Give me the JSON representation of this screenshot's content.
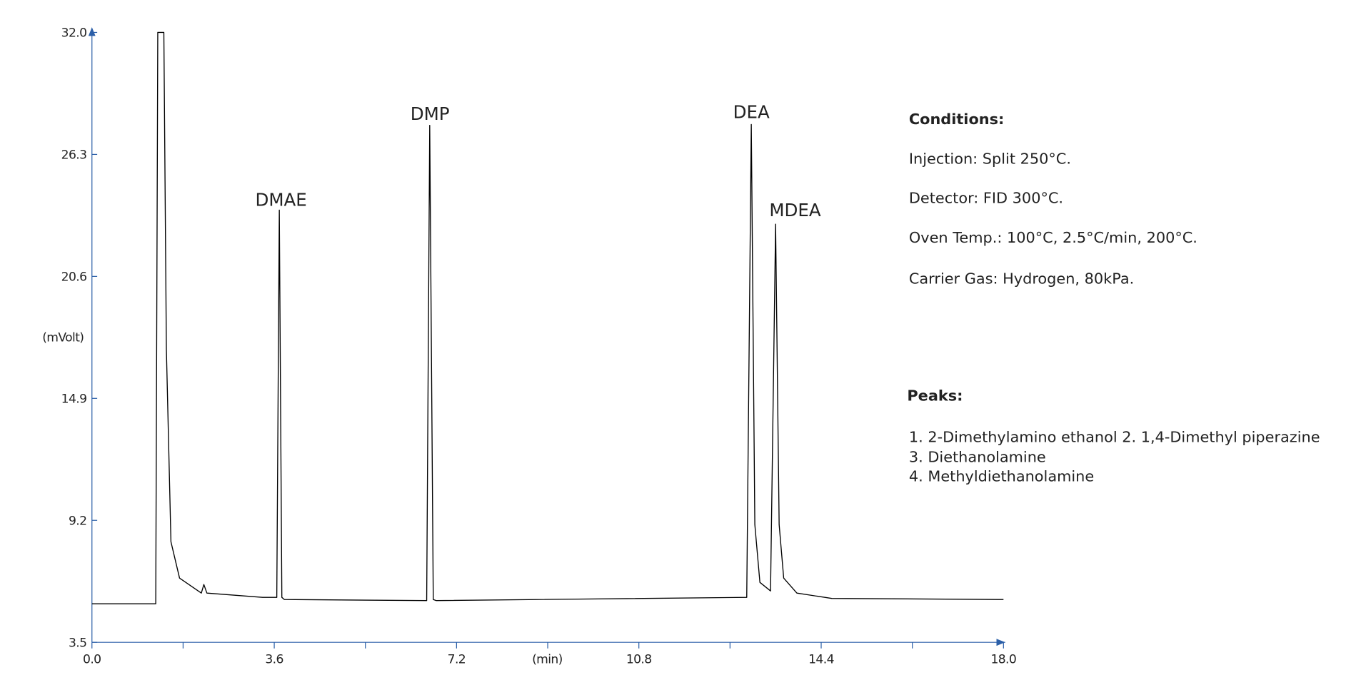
{
  "chart_data": {
    "type": "line",
    "x_label": "(min)",
    "y_label": "(mVolt)",
    "xlim": [
      0,
      18
    ],
    "ylim": [
      3.5,
      32
    ],
    "xticks": [
      {
        "value": 0,
        "label": "0.0"
      },
      3.6,
      7.2,
      10.8,
      14.4,
      {
        "value": 18,
        "label": "18.0"
      }
    ],
    "x_minor_ticks": [
      1.8,
      5.4,
      9.0,
      12.6,
      16.2
    ],
    "yticks": [
      3.5,
      9.2,
      14.9,
      20.6,
      26.3,
      {
        "value": 32,
        "label": "32.0"
      }
    ],
    "color": "#000000",
    "axis_color": "#2b5fa8",
    "x": [
      0,
      1.26,
      1.3,
      1.42,
      1.47,
      1.56,
      1.73,
      2.16,
      2.21,
      2.27,
      3.37,
      3.65,
      3.7,
      3.75,
      3.8,
      6.61,
      6.67,
      6.74,
      6.8,
      12.93,
      13.02,
      13.09,
      13.19,
      13.4,
      13.5,
      13.57,
      13.66,
      13.92,
      14.61,
      18
    ],
    "values": [
      5.3,
      5.3,
      32,
      32,
      17.2,
      8.2,
      6.5,
      5.8,
      6.2,
      5.8,
      5.6,
      5.6,
      23.7,
      5.6,
      5.5,
      5.45,
      27.66,
      5.5,
      5.45,
      5.6,
      27.7,
      9.0,
      6.3,
      5.9,
      23.04,
      9.0,
      6.5,
      5.8,
      5.55,
      5.5
    ],
    "annotations": [
      "DMAE",
      "DMP",
      "DEA",
      "MDEA"
    ]
  },
  "conditions": {
    "title": "Conditions:",
    "lines": [
      "Injection: Split 250°C.",
      "Detector: FID 300°C.",
      "Oven Temp.: 100°C, 2.5°C/min, 200°C.",
      "Carrier Gas: Hydrogen, 80kPa."
    ]
  },
  "peaks": {
    "title": "Peaks:",
    "lines": [
      "1. 2-Dimethylamino ethanol 2. 1,4-Dimethyl piperazine",
      "3. Diethanolamine",
      "4. Methyldiethanolamine"
    ]
  }
}
